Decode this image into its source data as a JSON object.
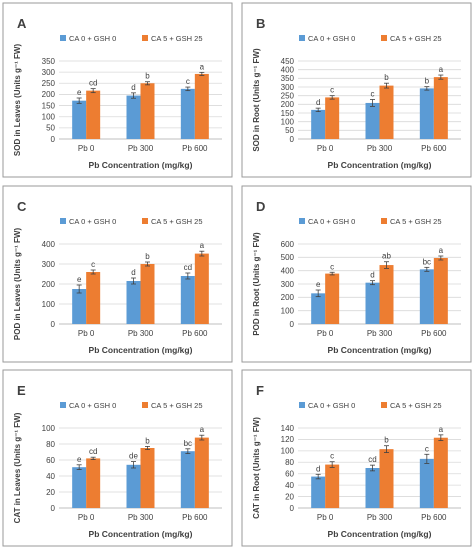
{
  "colors": {
    "series1": "#5B9BD5",
    "series2": "#ED7D31",
    "panel_border": "#9a9a9a",
    "grid": "#d9d9d9",
    "axis": "#bfbfbf",
    "text": "#404040",
    "error_bar": "#404040"
  },
  "chart_data": [
    {
      "panel": "A",
      "type": "bar",
      "categories": [
        "Pb 0",
        "Pb 300",
        "Pb 600"
      ],
      "series": [
        {
          "name": "CA 0 + GSH 0",
          "values": [
            172,
            195,
            225
          ],
          "errors": [
            12,
            12,
            8
          ],
          "letters": [
            "e",
            "d",
            "c"
          ]
        },
        {
          "name": "CA 5 + GSH 25",
          "values": [
            217,
            250,
            292
          ],
          "errors": [
            9,
            7,
            7
          ],
          "letters": [
            "cd",
            "b",
            "a"
          ]
        }
      ],
      "ylabel": "SOD in Leaves (Units g⁻¹ FW)",
      "xlabel": "Pb Concentration (mg/kg)",
      "ylim": [
        0,
        350
      ],
      "yticks": [
        0,
        50,
        100,
        150,
        200,
        250,
        300,
        350
      ],
      "grid": true,
      "legend": "top"
    },
    {
      "panel": "B",
      "type": "bar",
      "categories": [
        "Pb 0",
        "Pb 300",
        "Pb 600"
      ],
      "series": [
        {
          "name": "CA 0 + GSH 0",
          "values": [
            168,
            208,
            292
          ],
          "errors": [
            10,
            20,
            10
          ],
          "letters": [
            "d",
            "c",
            "b"
          ]
        },
        {
          "name": "CA 5 + GSH 25",
          "values": [
            240,
            308,
            357
          ],
          "errors": [
            10,
            14,
            12
          ],
          "letters": [
            "c",
            "b",
            "a"
          ]
        }
      ],
      "ylabel": "SOD in Root (Units g⁻¹ FW)",
      "xlabel": "Pb Concentration (mg/kg)",
      "ylim": [
        0,
        450
      ],
      "yticks": [
        0,
        50,
        100,
        150,
        200,
        250,
        300,
        350,
        400,
        450
      ],
      "grid": true,
      "legend": "top"
    },
    {
      "panel": "C",
      "type": "bar",
      "categories": [
        "Pb 0",
        "Pb 300",
        "Pb 600"
      ],
      "series": [
        {
          "name": "CA 0 + GSH 0",
          "values": [
            175,
            215,
            240
          ],
          "errors": [
            20,
            15,
            15
          ],
          "letters": [
            "e",
            "d",
            "cd"
          ]
        },
        {
          "name": "CA 5 + GSH 25",
          "values": [
            260,
            300,
            352
          ],
          "errors": [
            10,
            10,
            12
          ],
          "letters": [
            "c",
            "b",
            "a"
          ]
        }
      ],
      "ylabel": "POD in Leaves (Units g⁻¹ FW)",
      "xlabel": "Pb Concentration (mg/kg)",
      "ylim": [
        0,
        400
      ],
      "yticks": [
        0,
        100,
        200,
        300,
        400
      ],
      "grid": true,
      "legend": "top"
    },
    {
      "panel": "D",
      "type": "bar",
      "categories": [
        "Pb 0",
        "Pb 300",
        "Pb 600"
      ],
      "series": [
        {
          "name": "CA 0 + GSH 0",
          "values": [
            230,
            310,
            410
          ],
          "errors": [
            25,
            15,
            15
          ],
          "letters": [
            "e",
            "d",
            "bc"
          ]
        },
        {
          "name": "CA 5 + GSH 25",
          "values": [
            378,
            442,
            495
          ],
          "errors": [
            10,
            25,
            15
          ],
          "letters": [
            "c",
            "ab",
            "a"
          ]
        }
      ],
      "ylabel": "POD in Root (Units g⁻¹ FW)",
      "xlabel": "Pb Concentration (mg/kg)",
      "ylim": [
        0,
        600
      ],
      "yticks": [
        0,
        100,
        200,
        300,
        400,
        500,
        600
      ],
      "grid": true,
      "legend": "top"
    },
    {
      "panel": "E",
      "type": "bar",
      "categories": [
        "Pb 0",
        "Pb 300",
        "Pb 600"
      ],
      "series": [
        {
          "name": "CA 0 + GSH 0",
          "values": [
            51,
            54,
            71
          ],
          "errors": [
            3,
            4,
            3
          ],
          "letters": [
            "e",
            "de",
            "bc"
          ]
        },
        {
          "name": "CA 5 + GSH 25",
          "values": [
            62,
            75,
            88
          ],
          "errors": [
            1.5,
            2,
            3
          ],
          "letters": [
            "cd",
            "b",
            "a"
          ]
        }
      ],
      "ylabel": "CAT in Leaves (Units g⁻¹ FW)",
      "xlabel": "Pb Concentration (mg/kg)",
      "ylim": [
        0,
        100
      ],
      "yticks": [
        0,
        20,
        40,
        60,
        80,
        100
      ],
      "grid": true,
      "legend": "top"
    },
    {
      "panel": "F",
      "type": "bar",
      "categories": [
        "Pb 0",
        "Pb 300",
        "Pb 600"
      ],
      "series": [
        {
          "name": "CA 0 + GSH 0",
          "values": [
            55,
            70,
            86
          ],
          "errors": [
            4,
            5,
            8
          ],
          "letters": [
            "d",
            "cd",
            "c"
          ]
        },
        {
          "name": "CA 5 + GSH 25",
          "values": [
            76,
            103,
            123
          ],
          "errors": [
            5,
            6,
            5
          ],
          "letters": [
            "c",
            "b",
            "a"
          ]
        }
      ],
      "ylabel": "CAT in Root (Units g⁻¹ FW)",
      "xlabel": "Pb Concentration (mg/kg)",
      "ylim": [
        0,
        140
      ],
      "yticks": [
        0,
        20,
        40,
        60,
        80,
        100,
        120,
        140
      ],
      "grid": true,
      "legend": "top"
    }
  ]
}
